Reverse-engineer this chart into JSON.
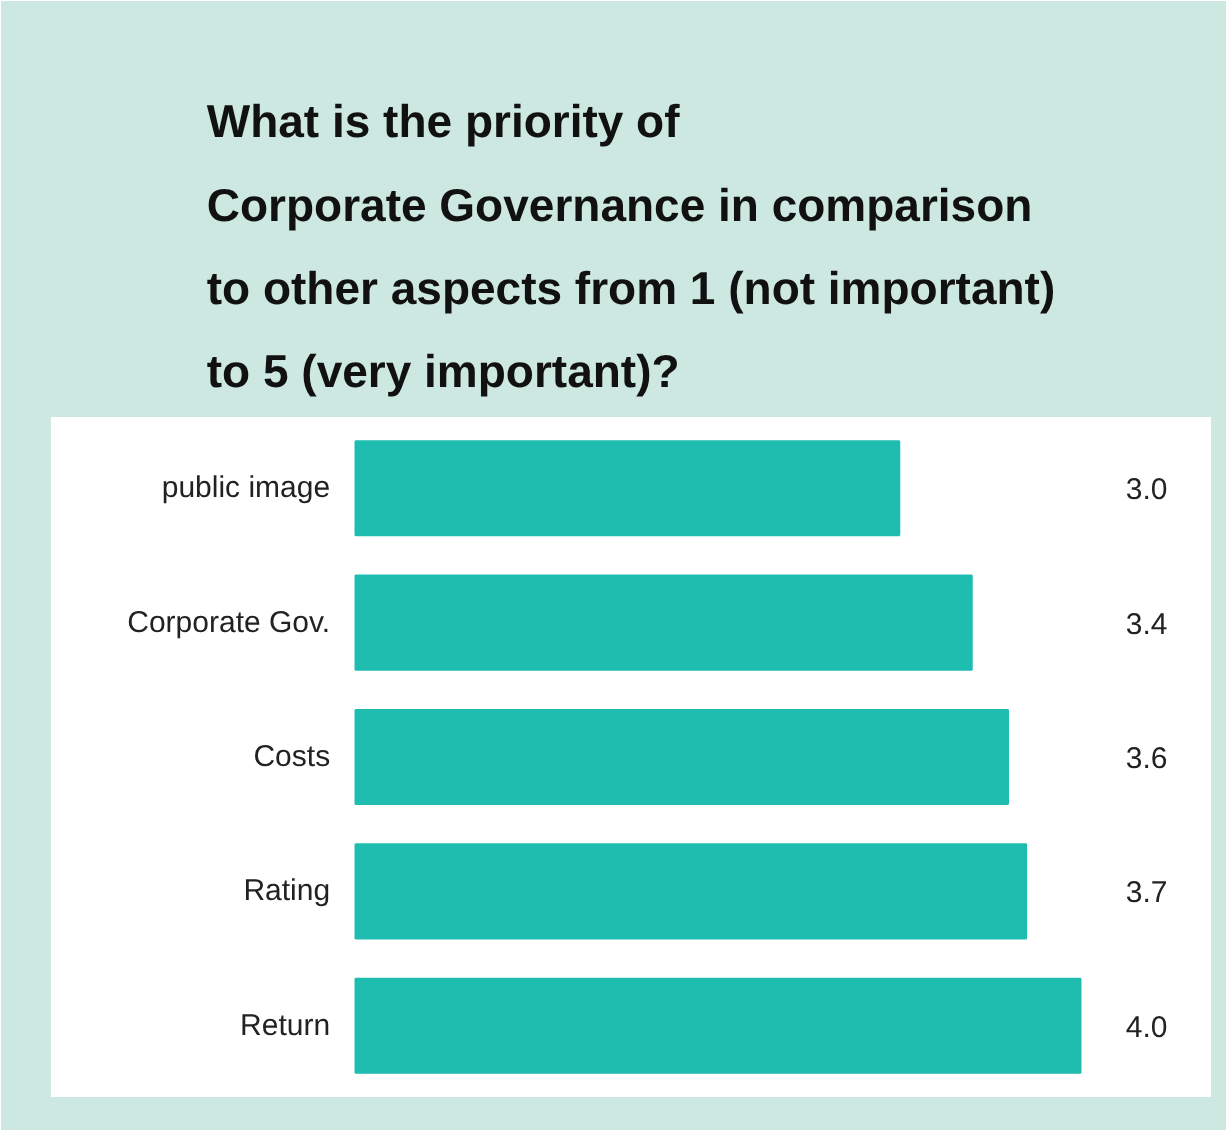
{
  "chart_data": {
    "type": "bar",
    "orientation": "horizontal",
    "title": "What is the priority of\nCorporate Governance in comparison\nto other aspects from 1 (not important)\nto 5 (very important)?",
    "categories": [
      "public image",
      "Corporate Gov.",
      "Costs",
      "Rating",
      "Return"
    ],
    "values": [
      3.0,
      3.4,
      3.6,
      3.7,
      4.0
    ],
    "value_labels": [
      "3.0",
      "3.4",
      "3.6",
      "3.7",
      "4.0"
    ],
    "color": "#1fbcb0",
    "grid": false
  }
}
